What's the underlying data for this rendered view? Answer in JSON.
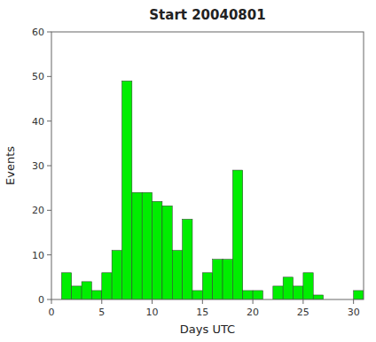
{
  "chart_data": {
    "type": "histogram",
    "title": "Start 20040801",
    "x_label": "Days UTC",
    "y_label": "Events",
    "bins": [
      1,
      2,
      3,
      4,
      5,
      6,
      7,
      8,
      9,
      10,
      11,
      12,
      13,
      14,
      15,
      16,
      17,
      18,
      19,
      20,
      21,
      22,
      23,
      24,
      25,
      26,
      27,
      28,
      29,
      30,
      31
    ],
    "values": [
      6,
      3,
      4,
      2,
      6,
      11,
      49,
      24,
      24,
      22,
      21,
      11,
      18,
      2,
      6,
      9,
      9,
      29,
      2,
      2,
      0,
      3,
      5,
      3,
      6,
      1,
      0,
      0,
      0,
      2
    ],
    "color": "#00ee00",
    "xlim": [
      0,
      31
    ],
    "ylim": [
      0,
      60
    ],
    "xticks": [
      0,
      5,
      10,
      15,
      20,
      25,
      30
    ],
    "yticks": [
      0,
      10,
      20,
      30,
      40,
      50,
      60
    ],
    "grid": false
  }
}
